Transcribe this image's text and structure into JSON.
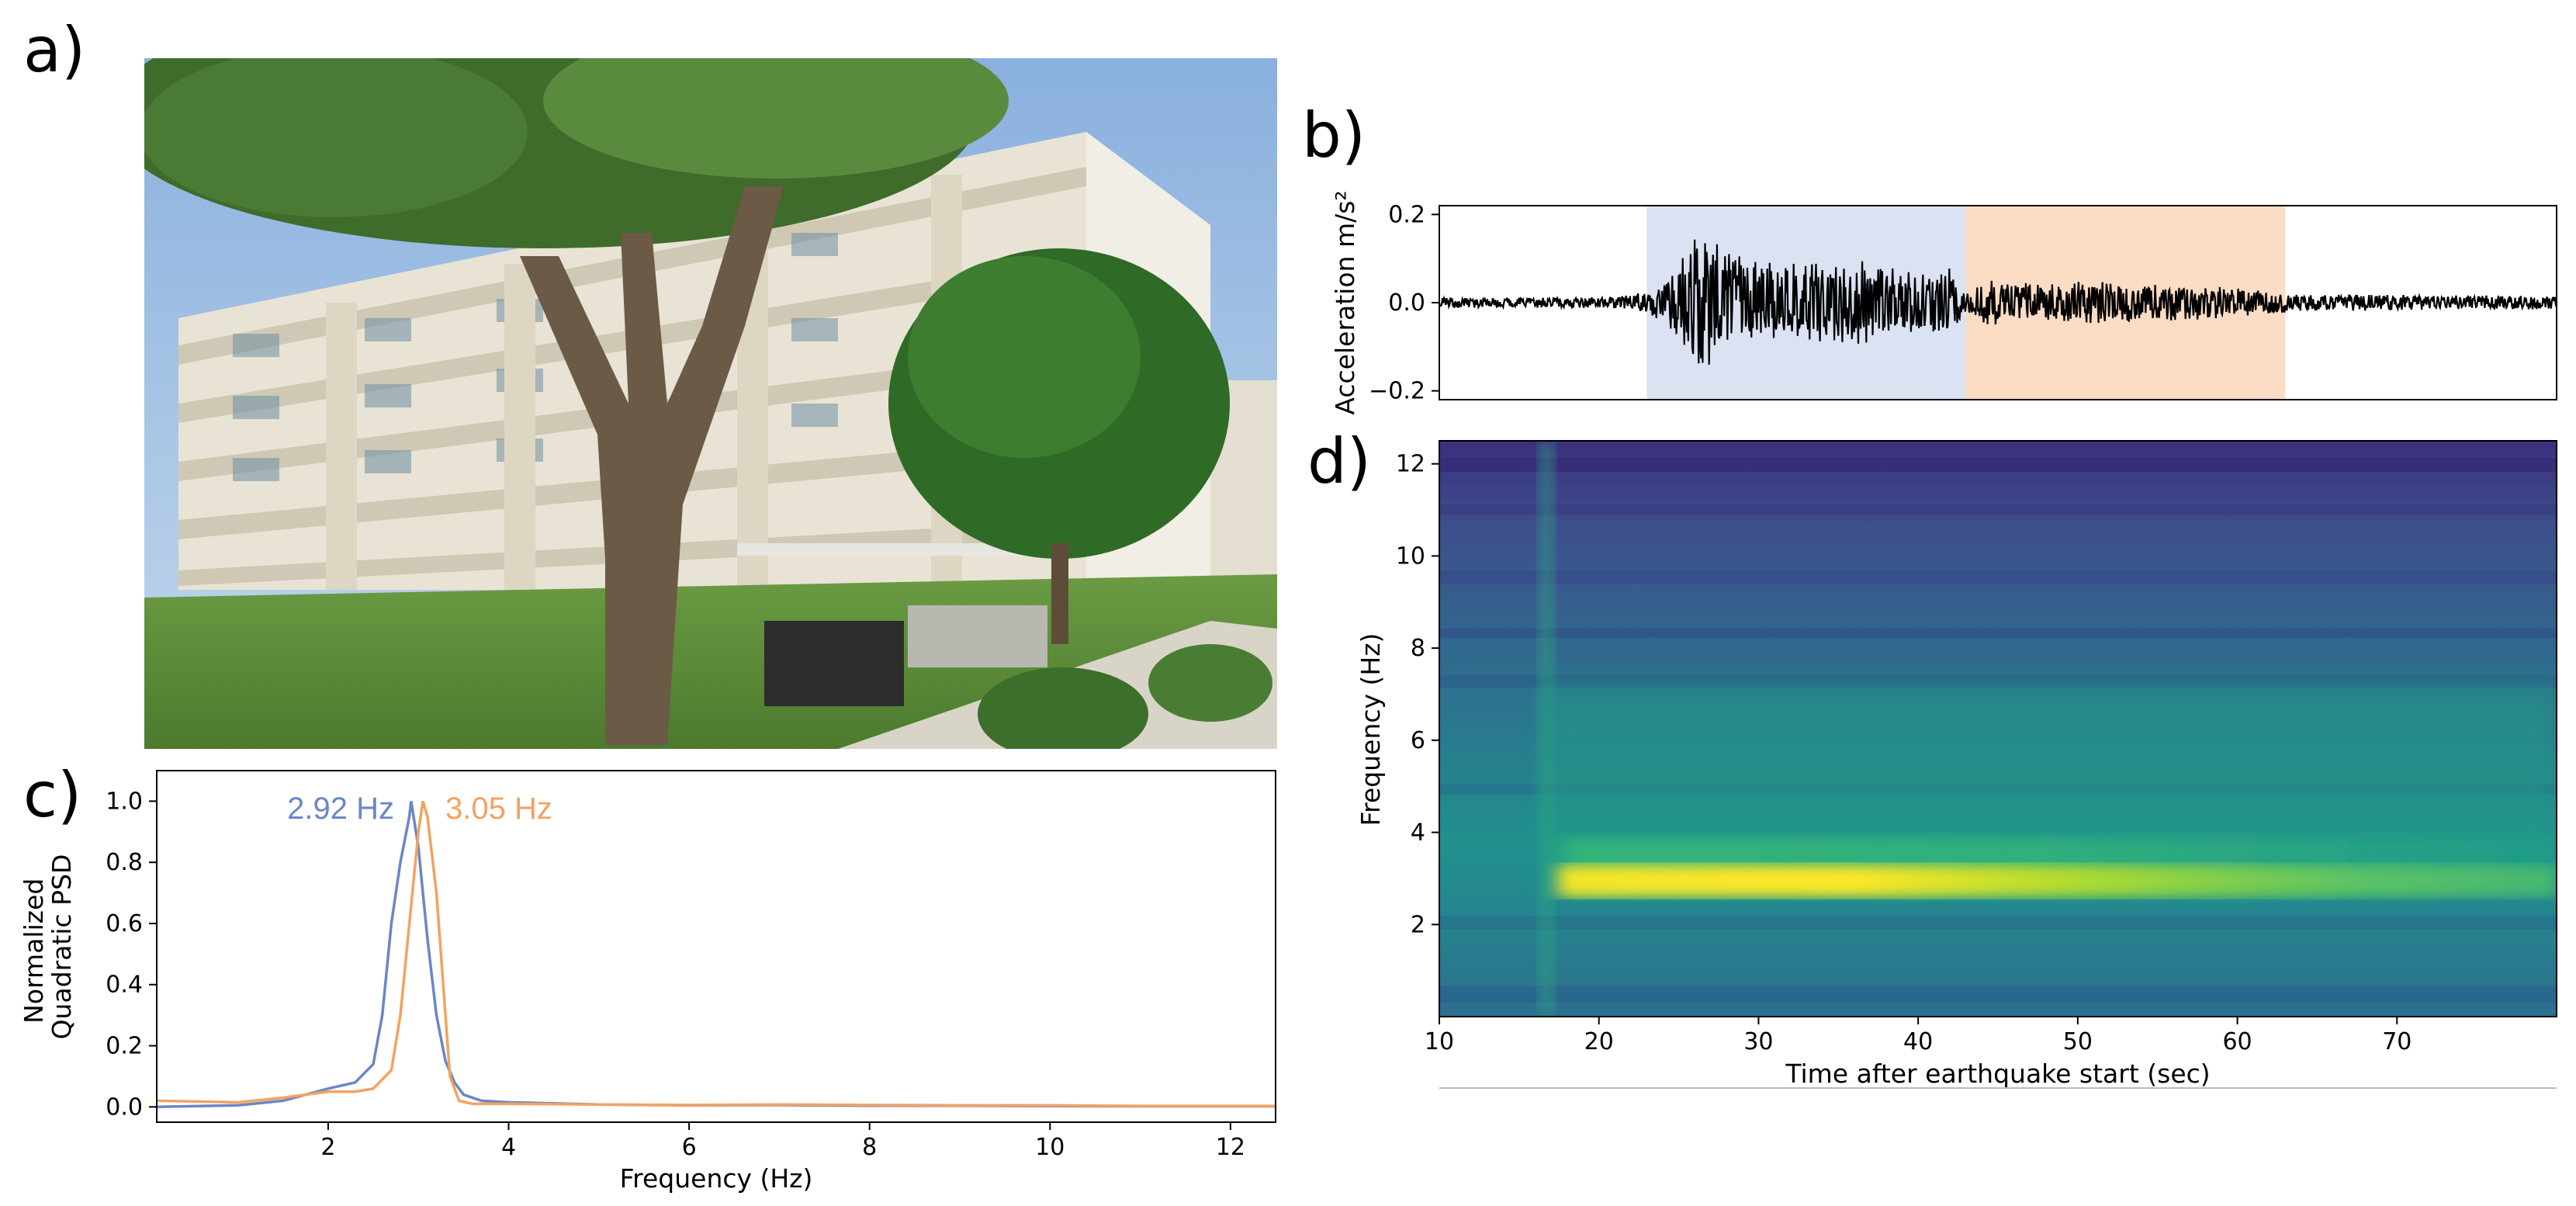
{
  "panels": {
    "a": "a)",
    "b": "b)",
    "c": "c)",
    "d": "d)"
  },
  "photo": {
    "sky_color": "#9fc0e6",
    "foliage_color": "#3d6b2c",
    "building_color": "#e9e4d6",
    "grass_color": "#5c8f3a"
  },
  "chart_data": [
    {
      "panel": "b",
      "type": "line",
      "ylabel": "Acceleration m/s²",
      "xlim": [
        10,
        80
      ],
      "ylim": [
        -0.22,
        0.22
      ],
      "yticks": [
        -0.2,
        0.0,
        0.2
      ],
      "ytick_labels": [
        "−0.2",
        "0.0",
        "0.2"
      ],
      "shaded_regions": [
        {
          "start": 23,
          "end": 43,
          "color": "#dbe3f3"
        },
        {
          "start": 43,
          "end": 63,
          "color": "#fbdcc4"
        }
      ],
      "envelope": {
        "x": [
          10,
          20,
          22,
          24,
          25.5,
          26.5,
          28,
          32,
          36,
          40,
          42,
          43,
          44,
          46,
          48,
          50,
          55,
          60,
          63,
          65,
          70,
          80
        ],
        "amplitude": [
          0.012,
          0.012,
          0.018,
          0.04,
          0.12,
          0.17,
          0.12,
          0.09,
          0.1,
          0.07,
          0.08,
          0.02,
          0.05,
          0.05,
          0.04,
          0.05,
          0.045,
          0.035,
          0.025,
          0.02,
          0.018,
          0.015
        ]
      }
    },
    {
      "panel": "c",
      "type": "line",
      "xlabel": "Frequency (Hz)",
      "ylabel": "Normalized\nQuadratic PSD",
      "xlim": [
        0.1,
        12.5
      ],
      "ylim": [
        -0.05,
        1.1
      ],
      "xticks": [
        2,
        4,
        6,
        8,
        10,
        12
      ],
      "yticks": [
        0.0,
        0.2,
        0.4,
        0.6,
        0.8,
        1.0
      ],
      "series": [
        {
          "color": "#6b86c8",
          "peak_label": "2.92 Hz",
          "x": [
            0.1,
            1.0,
            1.5,
            2.0,
            2.3,
            2.5,
            2.6,
            2.7,
            2.8,
            2.9,
            2.92,
            3.0,
            3.1,
            3.2,
            3.3,
            3.4,
            3.5,
            3.7,
            4.0,
            5.0,
            6.0,
            7.0,
            8.0,
            9.0,
            10.0,
            11.0,
            12.5
          ],
          "y": [
            0.0,
            0.005,
            0.02,
            0.06,
            0.08,
            0.14,
            0.3,
            0.6,
            0.8,
            0.95,
            1.0,
            0.85,
            0.55,
            0.3,
            0.15,
            0.08,
            0.04,
            0.02,
            0.015,
            0.008,
            0.005,
            0.006,
            0.004,
            0.004,
            0.003,
            0.002,
            0.002
          ]
        },
        {
          "color": "#f4a261",
          "peak_label": "3.05 Hz",
          "x": [
            0.1,
            1.0,
            1.5,
            2.0,
            2.3,
            2.5,
            2.7,
            2.8,
            2.9,
            3.0,
            3.05,
            3.1,
            3.2,
            3.3,
            3.35,
            3.45,
            3.6,
            4.0,
            5.0,
            6.0,
            7.0,
            8.0,
            9.0,
            10.0,
            11.0,
            12.5
          ],
          "y": [
            0.02,
            0.015,
            0.03,
            0.05,
            0.05,
            0.06,
            0.12,
            0.3,
            0.6,
            0.9,
            1.0,
            0.95,
            0.7,
            0.3,
            0.1,
            0.02,
            0.01,
            0.01,
            0.008,
            0.006,
            0.008,
            0.006,
            0.005,
            0.005,
            0.003,
            0.003
          ]
        }
      ]
    },
    {
      "panel": "d",
      "type": "heatmap",
      "xlabel": "Time after earthquake start (sec)",
      "ylabel": "Frequency (Hz)",
      "xlim": [
        10,
        80
      ],
      "ylim": [
        0,
        12.5
      ],
      "xticks": [
        10,
        20,
        30,
        40,
        50,
        60,
        70
      ],
      "yticks": [
        2,
        4,
        6,
        8,
        10,
        12
      ],
      "colormap": "viridis",
      "dominant_band_hz": 3.0,
      "event_onset_sec": 16.5
    }
  ]
}
